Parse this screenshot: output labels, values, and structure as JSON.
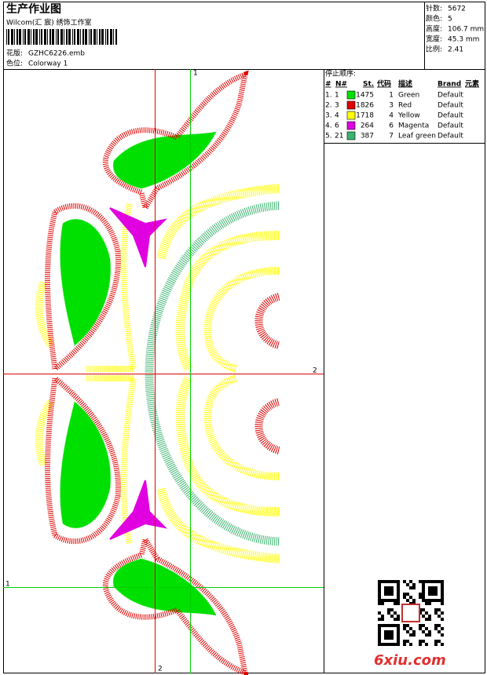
{
  "header": {
    "title": "生产作业图",
    "studio": "Wilcom(汇 宸) 绣饰工作室",
    "design_label": "花版:",
    "design": "GZHC6226.emb",
    "colorway_label": "色位:",
    "colorway": "Colorway 1"
  },
  "stats": [
    {
      "label": "针数:",
      "value": "5672"
    },
    {
      "label": "颜色:",
      "value": "5"
    },
    {
      "label": "高度:",
      "value": "106.7 mm"
    },
    {
      "label": "宽度:",
      "value": "45.3 mm"
    },
    {
      "label": "比例:",
      "value": "2.41"
    }
  ],
  "stop_sequence": {
    "title": "停止顺序:",
    "columns": [
      "#",
      "N#",
      "St.",
      "代码",
      "描述",
      "Brand",
      "元素"
    ],
    "rows": [
      {
        "index": "1.",
        "stop": "1",
        "color": "#00e000",
        "stitches": "1475",
        "code": "1",
        "description": "Green",
        "brand": "Default"
      },
      {
        "index": "2.",
        "stop": "3",
        "color": "#e00000",
        "stitches": "1826",
        "code": "3",
        "description": "Red",
        "brand": "Default"
      },
      {
        "index": "3.",
        "stop": "4",
        "color": "#ffff00",
        "stitches": "1718",
        "code": "4",
        "description": "Yellow",
        "brand": "Default"
      },
      {
        "index": "4.",
        "stop": "6",
        "color": "#e000e0",
        "stitches": "264",
        "code": "6",
        "description": "Magenta",
        "brand": "Default"
      },
      {
        "index": "5.",
        "stop": "21",
        "color": "#3cb371",
        "stitches": "387",
        "code": "7",
        "description": "Leaf green",
        "brand": "Default"
      }
    ]
  },
  "guides": {
    "top": "1",
    "right": "2",
    "left": "1",
    "bottom": "2"
  },
  "watermark": "6xiu.com"
}
